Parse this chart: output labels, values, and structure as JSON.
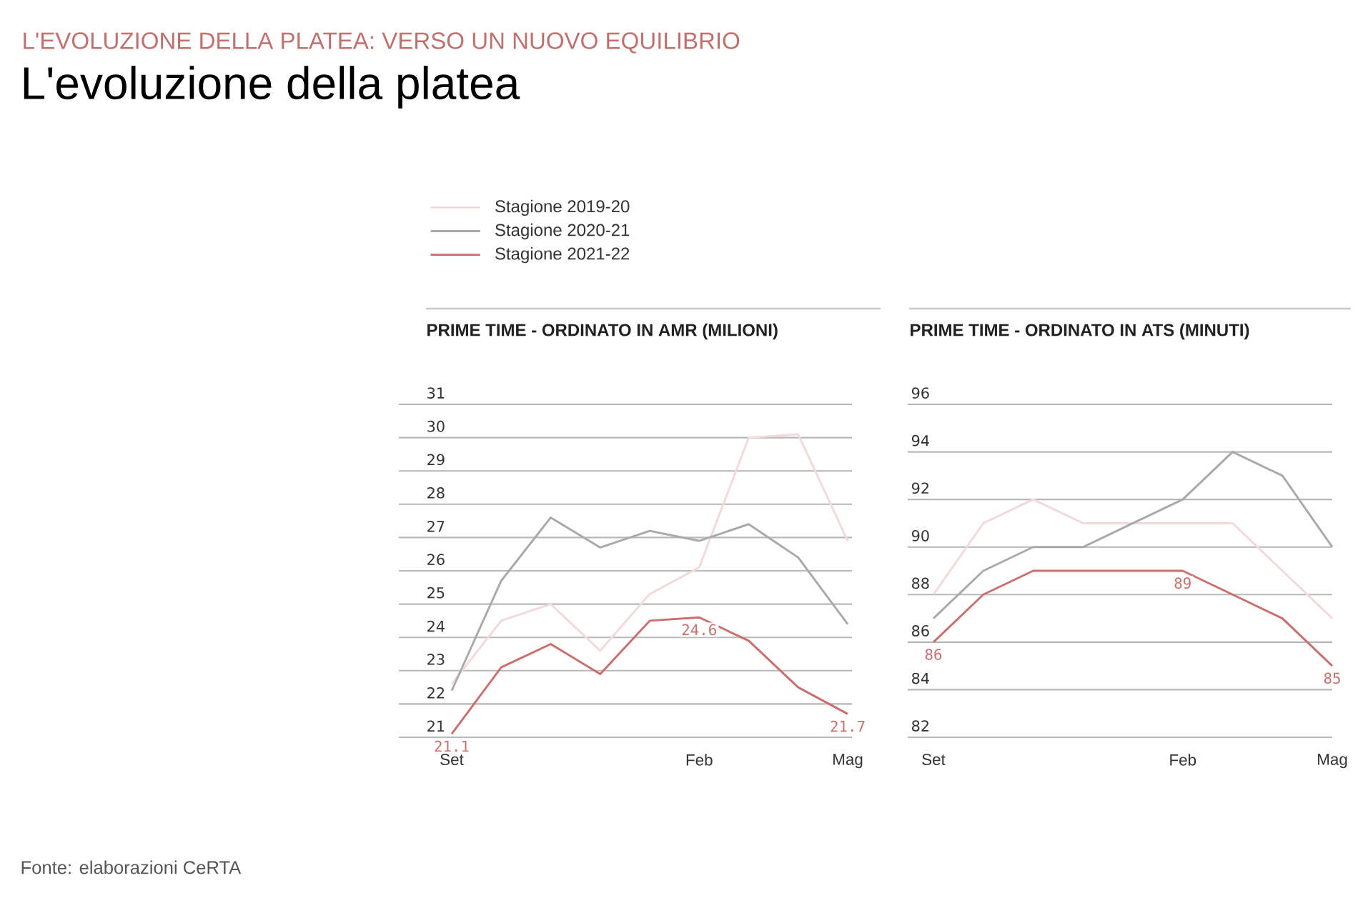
{
  "chart_data": [
    {
      "type": "line",
      "subtitle": "L'EVOLUZIONE DELLA PLATEA: VERSO UN NUOVO EQUILIBRIO",
      "title": "L'evoluzione della platea",
      "ylabel": "PRIME TIME - ORDINATO IN AMR (MILIONI)",
      "annotations": [
        "Fonte: elaborazioni CeRTA"
      ],
      "categories": [
        "Set",
        null,
        null,
        null,
        null,
        "Feb",
        null,
        null,
        "Mag"
      ],
      "series": [
        {
          "name": "Stagione 2019-20",
          "color": "#f2d9db",
          "values": [
            22.6,
            24.5,
            25.0,
            23.6,
            25.3,
            26.1,
            30.0,
            30.1,
            26.9
          ]
        },
        {
          "name": "Stagione 2020-21",
          "color": "#a9a9a9",
          "values": [
            22.4,
            25.7,
            27.6,
            26.7,
            27.2,
            26.9,
            27.4,
            26.4,
            24.4
          ]
        },
        {
          "name": "Stagione 2021-22",
          "color": "#c9706f",
          "values": [
            21.1,
            23.1,
            23.8,
            22.9,
            24.5,
            24.6,
            23.9,
            22.5,
            21.7
          ],
          "value_labels": [
            "21.1",
            null,
            null,
            null,
            null,
            "24.6",
            null,
            null,
            "21.7"
          ]
        }
      ],
      "ylim": [
        21,
        31
      ],
      "yticks": [
        21,
        22,
        23,
        24,
        25,
        26,
        27,
        28,
        29,
        30,
        31
      ],
      "grid": "y",
      "legend": "top left"
    },
    {
      "type": "line",
      "ylabel": "PRIME TIME - ORDINATO IN ATS (MINUTI)",
      "categories": [
        "Set",
        null,
        null,
        null,
        null,
        "Feb",
        null,
        null,
        "Mag"
      ],
      "series": [
        {
          "color": "#f2d9db",
          "values": [
            88,
            91,
            92,
            91,
            91,
            91,
            91,
            89,
            87
          ]
        },
        {
          "color": "#a9a9a9",
          "values": [
            87,
            89,
            90,
            90,
            91,
            92,
            94,
            93,
            90
          ]
        },
        {
          "color": "#c9706f",
          "values": [
            86,
            88,
            89,
            89,
            89,
            89,
            88,
            87,
            85
          ],
          "value_labels": [
            "86",
            null,
            null,
            null,
            null,
            "89",
            null,
            null,
            "85"
          ]
        }
      ],
      "ylim": [
        82,
        96
      ],
      "yticks": [
        82,
        84,
        86,
        88,
        90,
        92,
        94,
        96
      ],
      "grid": "y"
    }
  ]
}
